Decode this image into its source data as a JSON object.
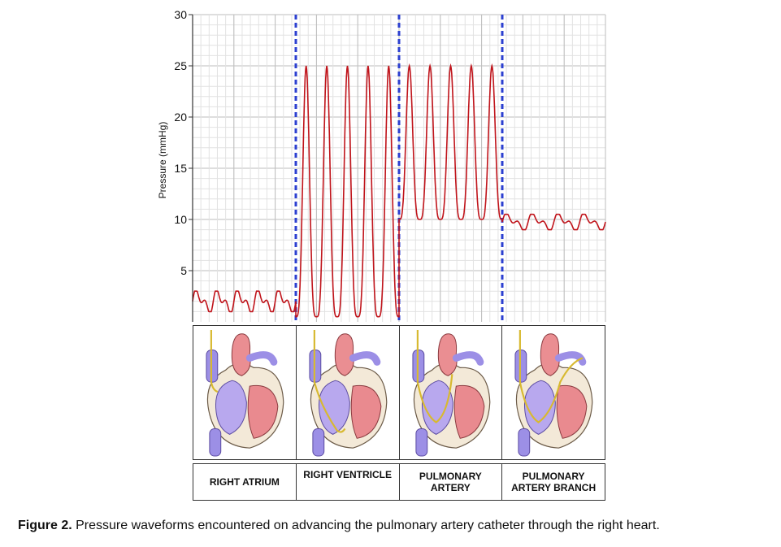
{
  "chart_data": {
    "type": "line",
    "title": "",
    "xlabel": "",
    "ylabel": "Pressure (mmHg)",
    "ylim": [
      0,
      30
    ],
    "yticks": [
      5,
      10,
      15,
      20,
      25,
      30
    ],
    "grid": true,
    "series": [
      {
        "name": "",
        "segments": [
          {
            "region": "RIGHT ATRIUM",
            "waveform": "low",
            "low": 1,
            "high": 3,
            "beats": 5
          },
          {
            "region": "RIGHT VENTRICLE",
            "waveform": "ventricular",
            "low": 0.5,
            "high": 25,
            "beats": 5
          },
          {
            "region": "PULMONARY ARTERY",
            "waveform": "arterial",
            "low": 10,
            "high": 25,
            "beats": 5
          },
          {
            "region": "PULMONARY ARTERY BRANCH",
            "waveform": "wedge",
            "low": 9,
            "high": 10.5,
            "beats": 4
          }
        ]
      }
    ],
    "line_color": "#c0141b",
    "divider_color": "#2b3fd0"
  },
  "regions": [
    "RIGHT ATRIUM",
    "RIGHT VENTRICLE",
    "PULMONARY\nARTERY",
    "PULMONARY\nARTERY BRANCH"
  ],
  "caption": {
    "label": "Figure 2.",
    "text": " Pressure waveforms encountered on advancing the pulmonary artery catheter through the right heart."
  }
}
